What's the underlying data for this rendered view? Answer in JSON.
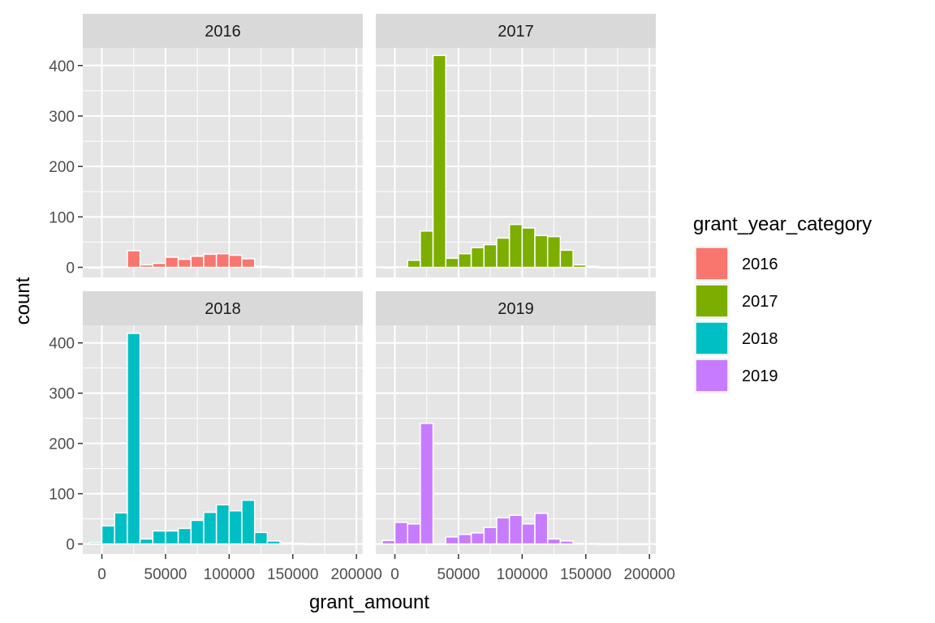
{
  "chart_data": {
    "type": "bar",
    "subtype": "faceted-histogram",
    "xlabel": "grant_amount",
    "ylabel": "count",
    "xlim": [
      -15000,
      205000
    ],
    "ylim": [
      -20,
      435
    ],
    "x_ticks": [
      "0",
      "50000",
      "100000",
      "150000",
      "200000"
    ],
    "x_tick_values": [
      0,
      50000,
      100000,
      150000,
      200000
    ],
    "y_ticks": [
      "0",
      "100",
      "200",
      "300",
      "400"
    ],
    "y_tick_values": [
      0,
      100,
      200,
      300,
      400
    ],
    "bin_centers": [
      -5000,
      5000,
      15000,
      25000,
      35000,
      45000,
      55000,
      65000,
      75000,
      85000,
      95000,
      105000,
      115000,
      125000,
      135000,
      145000,
      155000,
      165000,
      175000,
      185000,
      195000
    ],
    "bin_width": 10000,
    "grid": true,
    "panel_background": "#e5e5e5",
    "strip_background": "#d9d9d9",
    "bar_outline": "#ffffff",
    "legend": {
      "title": "grant_year_category",
      "placement": "right",
      "entries": [
        {
          "label": "2016",
          "color": "#f8766d"
        },
        {
          "label": "2017",
          "color": "#7cae00"
        },
        {
          "label": "2018",
          "color": "#00bfc4"
        },
        {
          "label": "2019",
          "color": "#c77cff"
        }
      ]
    },
    "series": [
      {
        "name": "2016",
        "color": "#f8766d",
        "values": [
          0,
          1,
          1,
          33,
          5,
          8,
          20,
          16,
          22,
          26,
          27,
          24,
          17,
          2,
          1,
          0,
          0,
          0,
          0,
          0,
          0
        ]
      },
      {
        "name": "2017",
        "color": "#7cae00",
        "values": [
          0,
          1,
          14,
          72,
          420,
          18,
          27,
          39,
          45,
          58,
          85,
          78,
          63,
          61,
          34,
          5,
          2,
          0,
          0,
          0,
          0
        ]
      },
      {
        "name": "2018",
        "color": "#00bfc4",
        "values": [
          3,
          36,
          62,
          419,
          10,
          26,
          26,
          31,
          47,
          63,
          78,
          66,
          87,
          23,
          6,
          2,
          1,
          0,
          0,
          0,
          0
        ]
      },
      {
        "name": "2019",
        "color": "#c77cff",
        "values": [
          7,
          43,
          40,
          240,
          0,
          14,
          19,
          22,
          33,
          52,
          57,
          40,
          61,
          10,
          6,
          1,
          1,
          0,
          0,
          0,
          0
        ]
      }
    ]
  }
}
